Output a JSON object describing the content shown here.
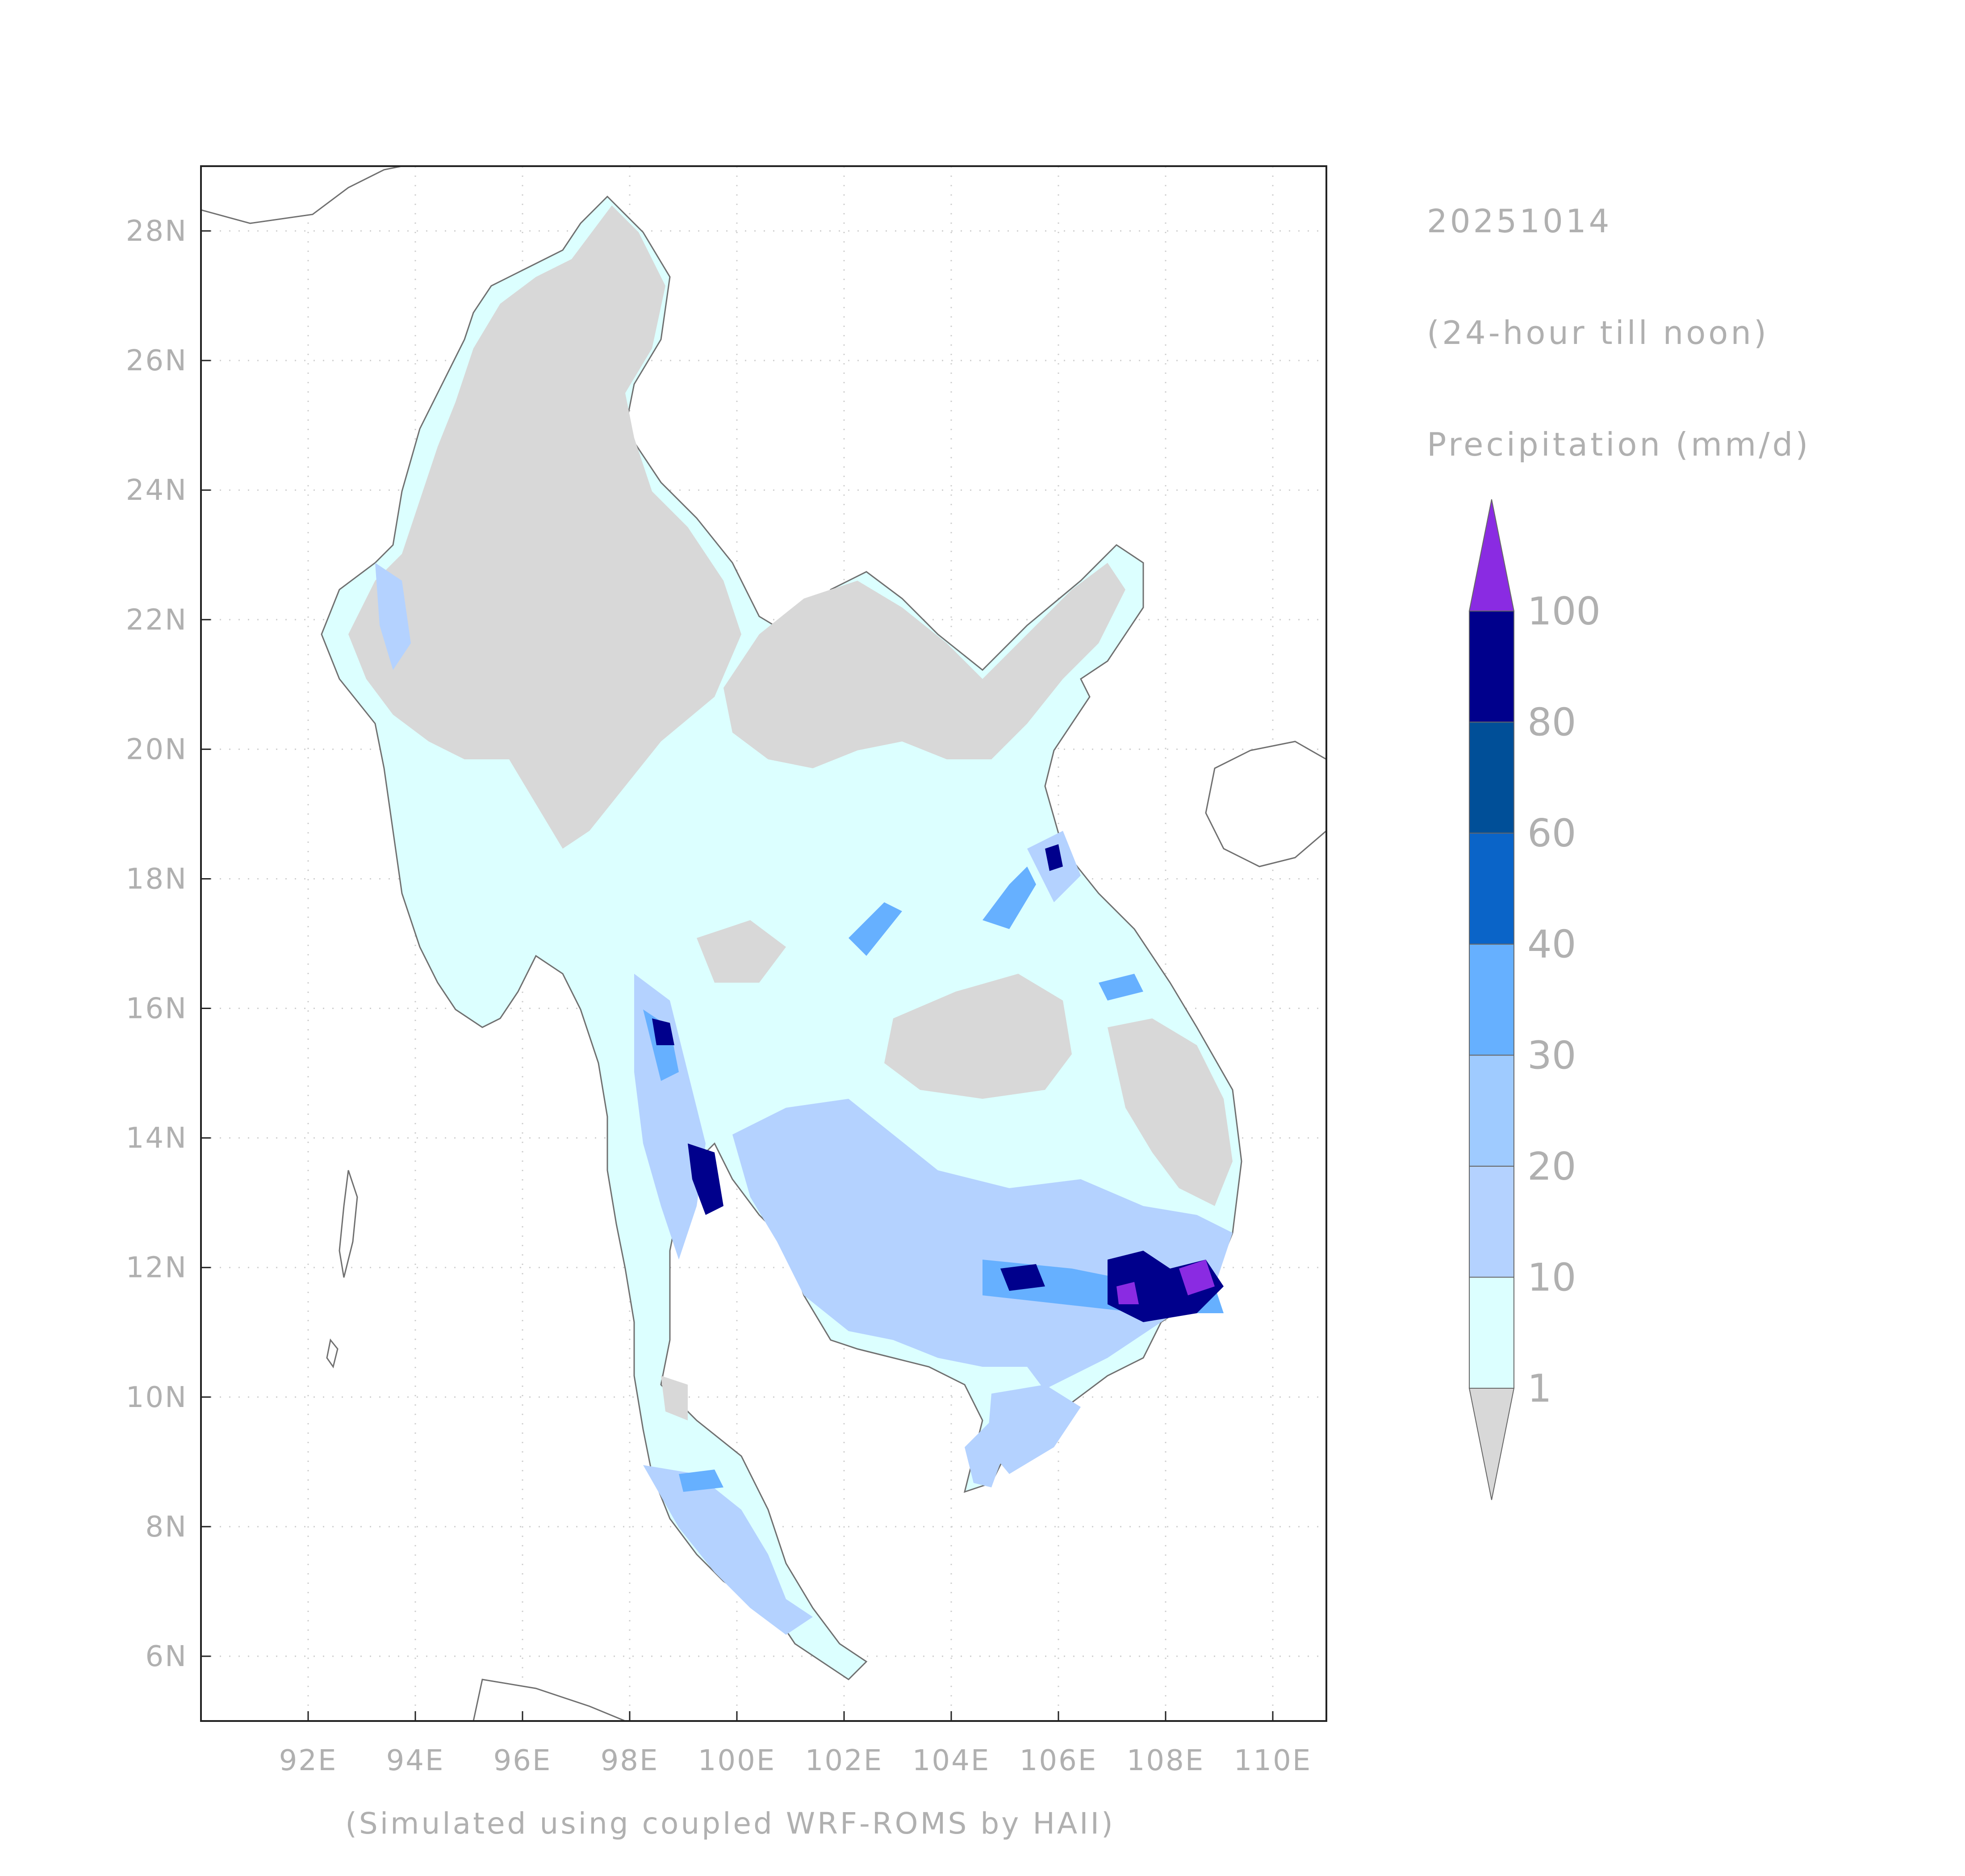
{
  "header": {
    "date": "20251014",
    "period": "(24-hour till noon)",
    "variable": "Precipitation (mm/d)"
  },
  "footer": {
    "credit": "(Simulated using coupled WRF-ROMS by HAII)"
  },
  "map": {
    "lon_range": [
      90,
      111
    ],
    "lat_range": [
      5,
      29
    ],
    "lon_ticks": [
      "92E",
      "94E",
      "96E",
      "98E",
      "100E",
      "102E",
      "104E",
      "106E",
      "108E",
      "110E"
    ],
    "lat_ticks": [
      "6N",
      "8N",
      "10N",
      "12N",
      "14N",
      "16N",
      "18N",
      "20N",
      "22N",
      "24N",
      "26N",
      "28N"
    ],
    "gridlines": "dotted"
  },
  "legend": {
    "labels": [
      "1",
      "10",
      "20",
      "30",
      "40",
      "60",
      "80",
      "100"
    ],
    "below_color": "#d8d8d8",
    "above_color": "#8a2be2",
    "colors": [
      "#dcffff",
      "#b4d2ff",
      "#9fcbff",
      "#66b0ff",
      "#0a64c8",
      "#004f98",
      "#00008c"
    ]
  },
  "colors": {
    "ocean": "#ffffff",
    "dry_land": "#d8d8d8",
    "border": "#707070",
    "frame": "#222222",
    "text": "#b0b0b0"
  }
}
